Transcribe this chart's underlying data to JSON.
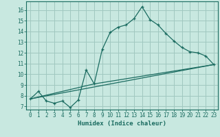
{
  "xlabel": "Humidex (Indice chaleur)",
  "bg_color": "#c8e8e0",
  "grid_color": "#a0c8c0",
  "line_color": "#1a6b60",
  "xlim": [
    -0.5,
    23.5
  ],
  "ylim": [
    6.7,
    16.8
  ],
  "xticks": [
    0,
    1,
    2,
    3,
    4,
    5,
    6,
    7,
    8,
    9,
    10,
    11,
    12,
    13,
    14,
    15,
    16,
    17,
    18,
    19,
    20,
    21,
    22,
    23
  ],
  "yticks": [
    7,
    8,
    9,
    10,
    11,
    12,
    13,
    14,
    15,
    16
  ],
  "series1_x": [
    0,
    1,
    2,
    3,
    4,
    5,
    6,
    7,
    8,
    9,
    10,
    11,
    12,
    13,
    14,
    15,
    16,
    17,
    18,
    19,
    20,
    21,
    22,
    23
  ],
  "series1_y": [
    7.7,
    8.4,
    7.5,
    7.3,
    7.5,
    6.9,
    7.6,
    10.4,
    9.1,
    12.3,
    13.9,
    14.4,
    14.6,
    15.2,
    16.3,
    15.1,
    14.6,
    13.8,
    13.1,
    12.5,
    12.1,
    12.0,
    11.7,
    10.9
  ],
  "series2_x": [
    0,
    23
  ],
  "series2_y": [
    7.7,
    10.9
  ],
  "series3_x": [
    0,
    8,
    23
  ],
  "series3_y": [
    7.7,
    9.1,
    10.9
  ]
}
